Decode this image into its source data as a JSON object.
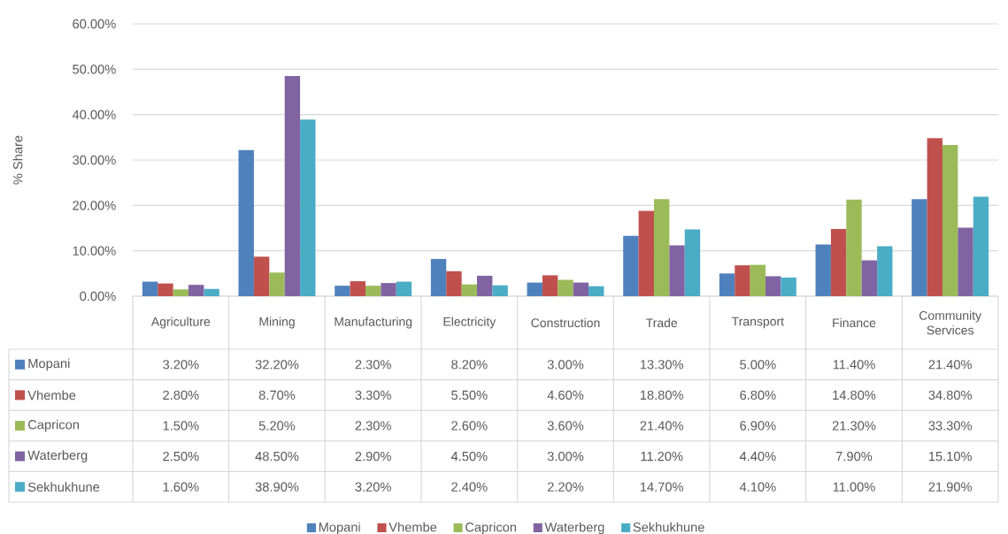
{
  "chart_data": {
    "type": "bar",
    "ylabel": "% Share",
    "categories": [
      "Agriculture",
      "Mining",
      "Manufacturing",
      "Electricity",
      "Construction",
      "Trade",
      "Transport",
      "Finance",
      "Community Services"
    ],
    "series": [
      {
        "name": "Mopani",
        "color": "#4f81bd",
        "values": [
          3.2,
          32.2,
          2.3,
          8.2,
          3.0,
          13.3,
          5.0,
          11.4,
          21.4
        ],
        "value_labels": [
          "3.20%",
          "32.20%",
          "2.30%",
          "8.20%",
          "3.00%",
          "13.30%",
          "5.00%",
          "11.40%",
          "21.40%"
        ]
      },
      {
        "name": "Vhembe",
        "color": "#c0504d",
        "values": [
          2.8,
          8.7,
          3.3,
          5.5,
          4.6,
          18.8,
          6.8,
          14.8,
          34.8
        ],
        "value_labels": [
          "2.80%",
          "8.70%",
          "3.30%",
          "5.50%",
          "4.60%",
          "18.80%",
          "6.80%",
          "14.80%",
          "34.80%"
        ]
      },
      {
        "name": "Capricon",
        "color": "#9bbb59",
        "values": [
          1.5,
          5.2,
          2.3,
          2.6,
          3.6,
          21.4,
          6.9,
          21.3,
          33.3
        ],
        "value_labels": [
          "1.50%",
          "5.20%",
          "2.30%",
          "2.60%",
          "3.60%",
          "21.40%",
          "6.90%",
          "21.30%",
          "33.30%"
        ]
      },
      {
        "name": "Waterberg",
        "color": "#8064a2",
        "values": [
          2.5,
          48.5,
          2.9,
          4.5,
          3.0,
          11.2,
          4.4,
          7.9,
          15.1
        ],
        "value_labels": [
          "2.50%",
          "48.50%",
          "2.90%",
          "4.50%",
          "3.00%",
          "11.20%",
          "4.40%",
          "7.90%",
          "15.10%"
        ]
      },
      {
        "name": "Sekhukhune",
        "color": "#4bacc6",
        "values": [
          1.6,
          38.9,
          3.2,
          2.4,
          2.2,
          14.7,
          4.1,
          11.0,
          21.9
        ],
        "value_labels": [
          "1.60%",
          "38.90%",
          "3.20%",
          "2.40%",
          "2.20%",
          "14.70%",
          "4.10%",
          "11.00%",
          "21.90%"
        ]
      }
    ],
    "ylim": [
      0,
      60
    ],
    "yticks": [
      {
        "value": 0,
        "label": "0.00%"
      },
      {
        "value": 10,
        "label": "10.00%"
      },
      {
        "value": 20,
        "label": "20.00%"
      },
      {
        "value": 30,
        "label": "30.00%"
      },
      {
        "value": 40,
        "label": "40.00%"
      },
      {
        "value": 50,
        "label": "50.00%"
      },
      {
        "value": 60,
        "label": "60.00%"
      }
    ],
    "grid": "y",
    "legend": "bottom"
  }
}
